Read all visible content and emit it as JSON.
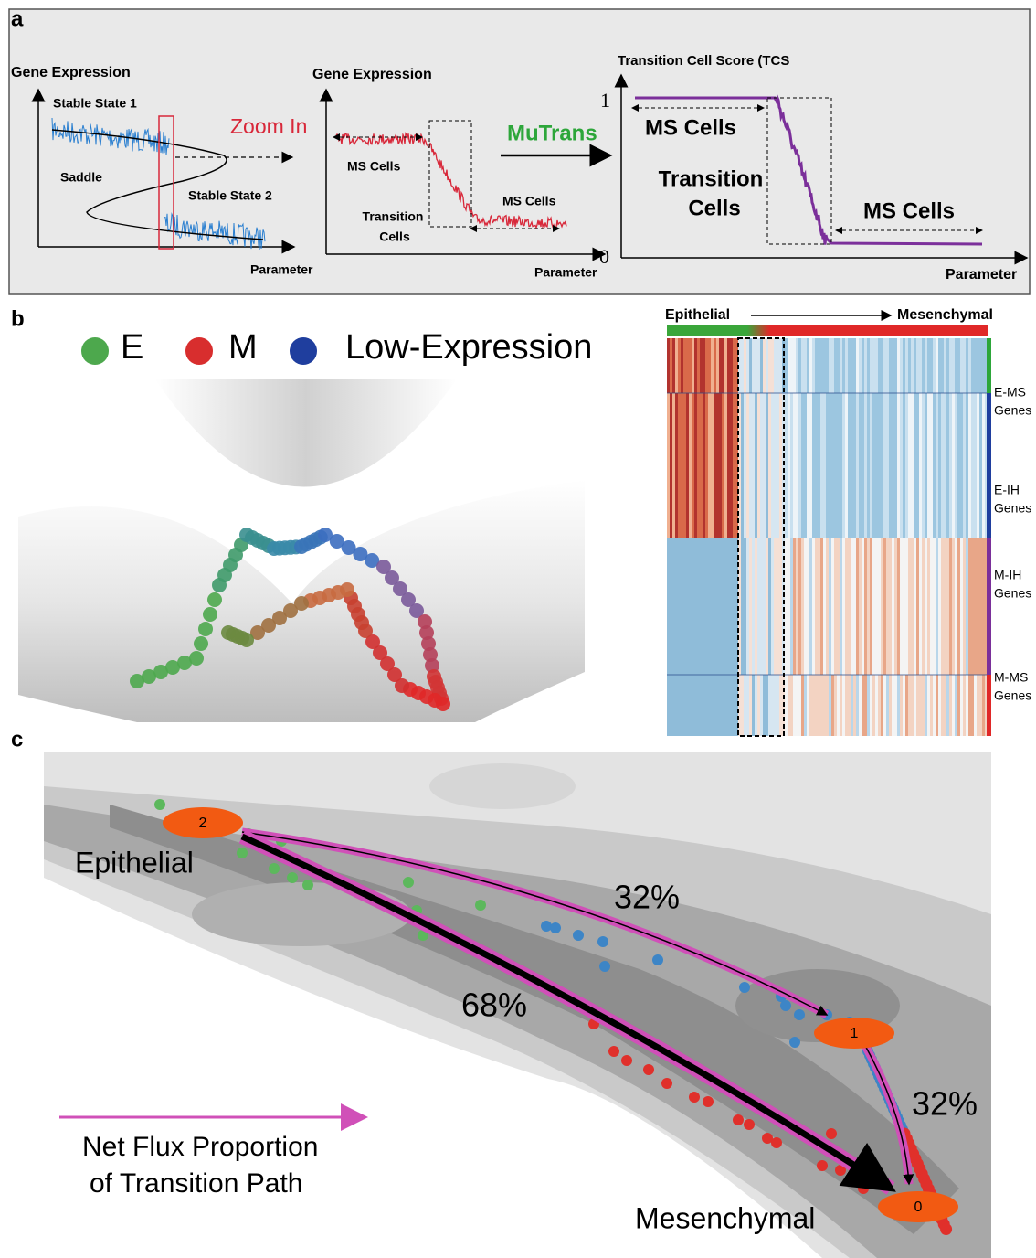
{
  "panel_a": {
    "label": "a",
    "plot1": {
      "y_label": "Gene Expression",
      "stable1": "Stable State 1",
      "saddle": "Saddle",
      "stable2": "Stable State 2",
      "x_label": "Parameter"
    },
    "zoom": "Zoom In",
    "plot2": {
      "y_label": "Gene Expression",
      "ms_left": "MS Cells",
      "transition": [
        "Transition",
        "Cells"
      ],
      "ms_right": "MS Cells",
      "x_label": "Parameter"
    },
    "method": "MuTrans",
    "plot3": {
      "y_label": "Transition Cell Score (TCS",
      "y_max": "1",
      "y_min": "0",
      "ms_left": "MS Cells",
      "transition": [
        "Transition",
        "Cells"
      ],
      "ms_right": "MS Cells",
      "x_label": "Parameter"
    }
  },
  "panel_b": {
    "label": "b",
    "legend": [
      "E",
      "M",
      "Low-Expression"
    ],
    "heatmap": {
      "left": "Epithelial",
      "right": "Mesenchymal",
      "groups": [
        [
          "E-MS",
          "Genes"
        ],
        [
          "E-IH",
          "Genes"
        ],
        [
          "M-IH",
          "Genes"
        ],
        [
          "M-MS",
          "Genes"
        ]
      ]
    }
  },
  "panel_c": {
    "label": "c",
    "states": [
      "2",
      "1",
      "0"
    ],
    "epithelial": "Epithelial",
    "mesenchymal": "Mesenchymal",
    "flux_upper": "32%",
    "flux_lower": "68%",
    "flux_right": "32%",
    "legend": [
      "Net Flux Proportion",
      "of Transition Path"
    ]
  }
}
